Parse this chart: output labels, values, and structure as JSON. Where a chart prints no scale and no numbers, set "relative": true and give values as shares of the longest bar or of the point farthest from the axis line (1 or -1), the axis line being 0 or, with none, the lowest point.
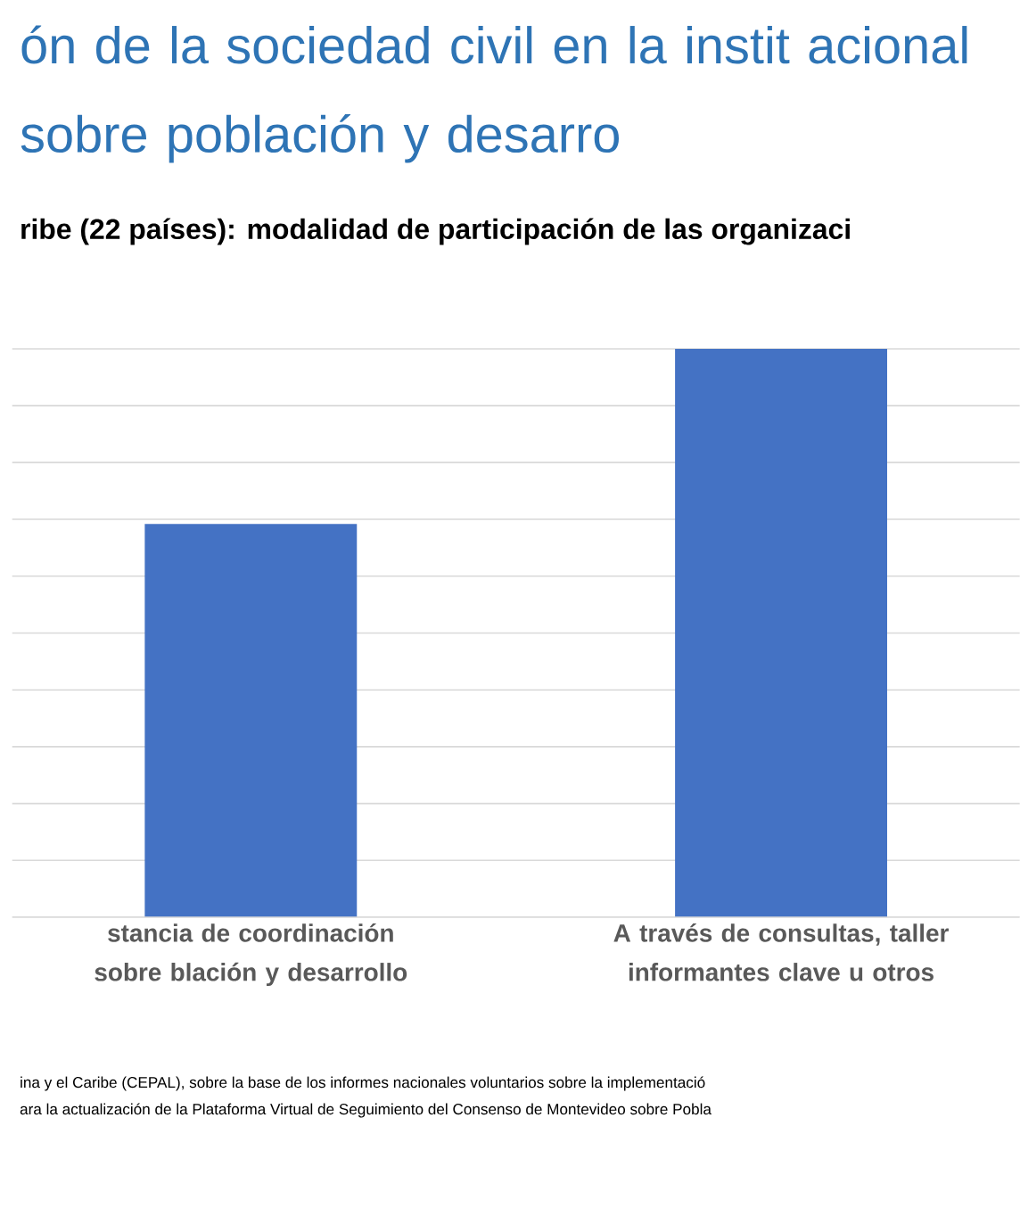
{
  "chart_data": {
    "type": "bar",
    "title": "ón de la sociedad civil en la instit acional sobre población y desarro",
    "subtitle": "ribe (22 países): modalidad de participación de las organizaci",
    "categories": [
      "stancia de coordinación sobre blación y desarrollo",
      "A través de consultas, taller informantes clave u otros"
    ],
    "values": [
      0.692,
      1
    ],
    "color": "#4472c4",
    "relative": true,
    "grid": "y",
    "annotations": [
      "ina y el Caribe (CEPAL), sobre la base de los informes nacionales voluntarios sobre la implementació",
      "ara la actualización de la Plataforma Virtual de Seguimiento del Consenso de Montevideo sobre Pobla"
    ]
  }
}
